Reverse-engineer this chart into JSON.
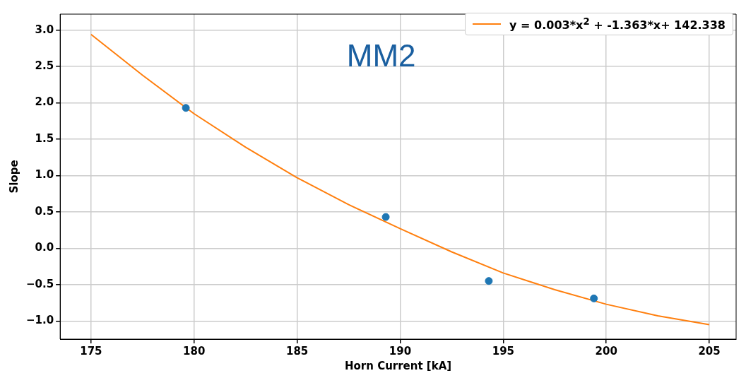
{
  "chart_data": {
    "type": "scatter",
    "title": "MM2",
    "xlabel": "Horn Current [kA]",
    "ylabel": "Slope",
    "xlim": [
      173.5,
      206.3
    ],
    "ylim": [
      -1.25,
      3.22
    ],
    "xticks": [
      175,
      180,
      185,
      190,
      195,
      200,
      205
    ],
    "yticks": [
      {
        "value": -1,
        "label": "−1.0"
      },
      {
        "value": -0.5,
        "label": "−0.5"
      },
      {
        "value": 0,
        "label": "0.0"
      },
      {
        "value": 0.5,
        "label": "0.5"
      },
      {
        "value": 1,
        "label": "1.0"
      },
      {
        "value": 1.5,
        "label": "1.5"
      },
      {
        "value": 2,
        "label": "2.0"
      },
      {
        "value": 2.5,
        "label": "2.5"
      },
      {
        "value": 3,
        "label": "3.0"
      }
    ],
    "grid": true,
    "legend": "top right",
    "series": [
      {
        "type": "scatter",
        "color": "#1f77b4",
        "marker": "circle",
        "x": [
          179.6,
          189.3,
          194.3,
          199.4
        ],
        "values": [
          1.93,
          0.43,
          -0.45,
          -0.69
        ]
      },
      {
        "type": "line",
        "name": "y = 0.003*x$^{2}$ + -1.363*x+ 142.338",
        "color": "#ff7f0e",
        "marker": "none",
        "x": [
          175,
          177.5,
          180,
          182.5,
          185,
          187.5,
          190,
          192.5,
          195,
          197.5,
          200,
          202.5,
          205
        ],
        "values": [
          2.94,
          2.38,
          1.85,
          1.39,
          0.97,
          0.6,
          0.27,
          -0.05,
          -0.34,
          -0.57,
          -0.77,
          -0.93,
          -1.05
        ]
      }
    ]
  }
}
